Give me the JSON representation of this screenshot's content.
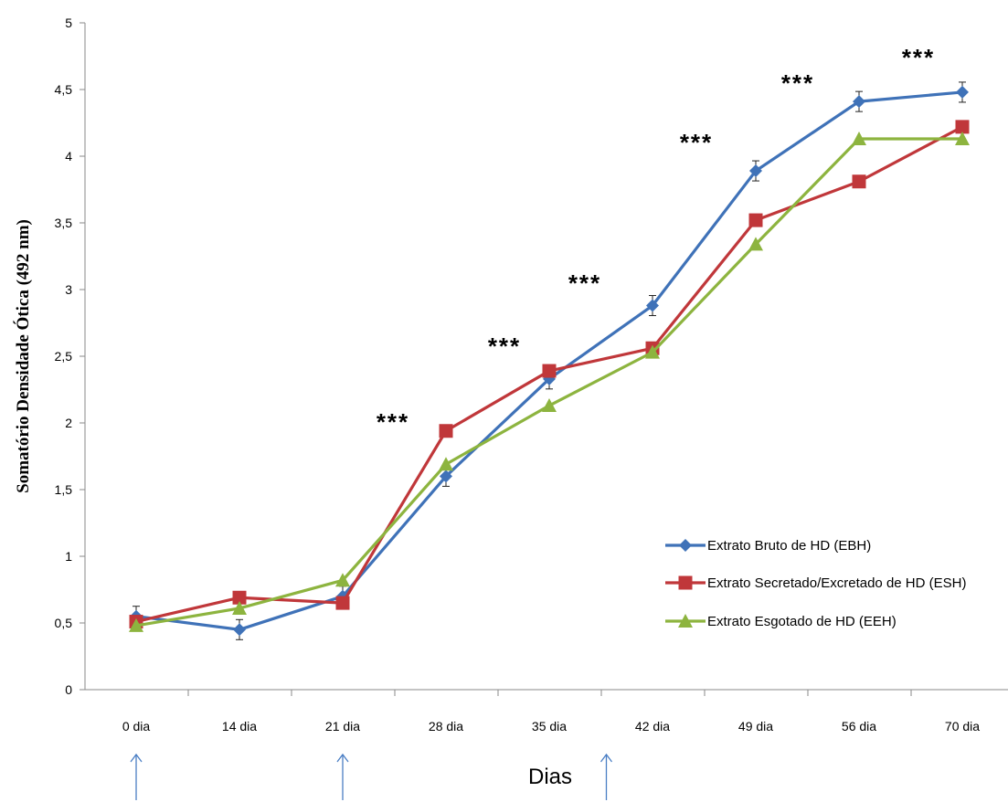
{
  "chart_data": {
    "type": "line",
    "title": "",
    "ylabel": "Somatório  Densidade  Ótica (492 nm)",
    "xlabel": "Dias",
    "ylim": [
      0,
      5
    ],
    "yticks": [
      "0",
      "0,5",
      "1",
      "1,5",
      "2",
      "2,5",
      "3",
      "3,5",
      "4",
      "4,5",
      "5"
    ],
    "categories": [
      "0 dia",
      "14 dia",
      "21 dia",
      "28 dia",
      "35 dia",
      "42 dia",
      "49 dia",
      "56 dia",
      "70 dia"
    ],
    "series": [
      {
        "name": "Extrato Bruto de HD (EBH)",
        "color": "#3f72b8",
        "marker": "diamond",
        "values": [
          0.55,
          0.45,
          0.7,
          1.6,
          2.33,
          2.88,
          3.89,
          4.41,
          4.48
        ]
      },
      {
        "name": "Extrato Secretado/Excretado de HD (ESH)",
        "color": "#c0373a",
        "marker": "square",
        "values": [
          0.51,
          0.69,
          0.65,
          1.94,
          2.39,
          2.56,
          3.52,
          3.81,
          4.22
        ]
      },
      {
        "name": "Extrato Esgotado de HD (EEH)",
        "color": "#8db43f",
        "marker": "triangle",
        "values": [
          0.48,
          0.61,
          0.82,
          1.69,
          2.13,
          2.53,
          3.34,
          4.13,
          4.13
        ]
      }
    ],
    "annotations": [
      {
        "text": "***",
        "x": "between 21 dia and 28 dia",
        "y": 2.0
      },
      {
        "text": "***",
        "x": "between 28 dia and 35 dia",
        "y": 2.5
      },
      {
        "text": "***",
        "x": "between 35 dia and 42 dia",
        "y": 2.95
      },
      {
        "text": "***",
        "x": "between 42 dia and 49 dia",
        "y": 4.0
      },
      {
        "text": "***",
        "x": "between 49 dia and 56 dia",
        "y": 4.5
      },
      {
        "text": "***",
        "x": "between 56 dia and 70 dia",
        "y": 4.75
      }
    ],
    "arrows": [
      "0 dia",
      "21 dia",
      "between 35 dia and 42 dia"
    ],
    "legend_position": "right"
  }
}
